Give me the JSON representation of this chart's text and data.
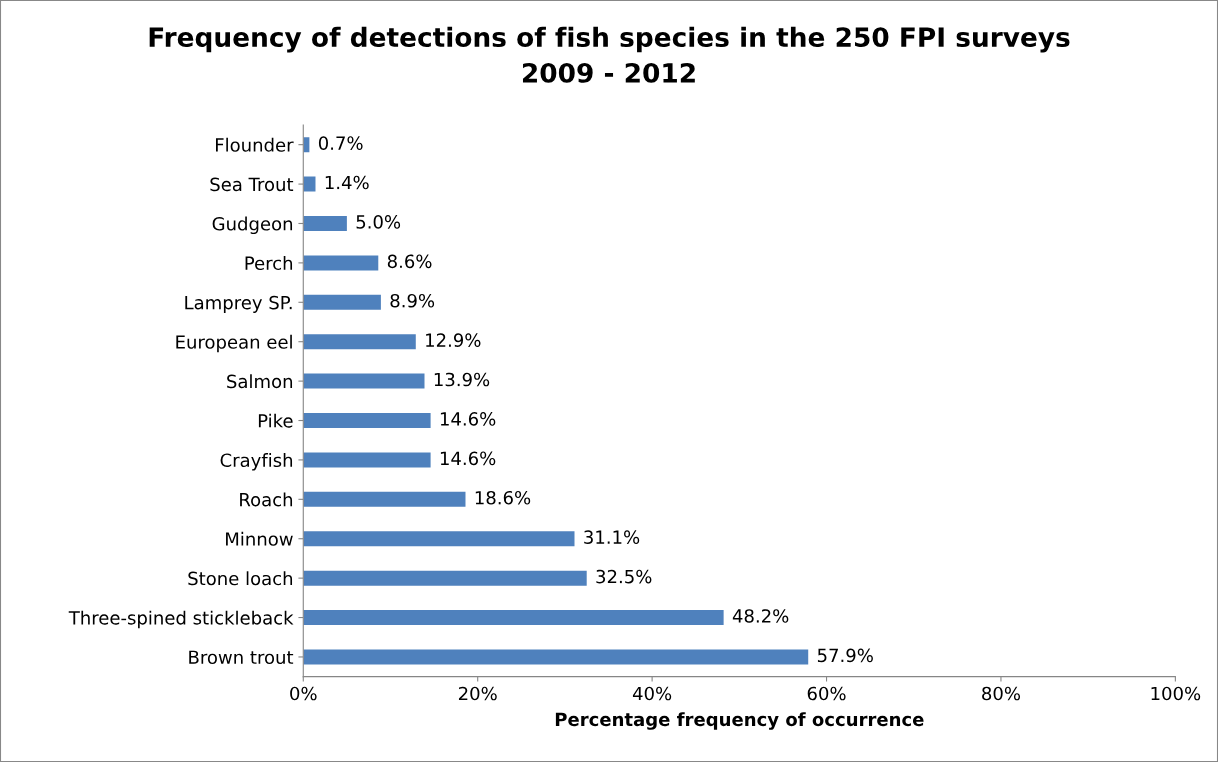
{
  "chart_data": {
    "type": "bar",
    "orientation": "horizontal",
    "title": "Frequency of detections of fish species in the 250 FPI surveys\n2009 - 2012",
    "xlabel": "Percentage frequency of occurrence",
    "categories": [
      "Flounder",
      "Sea Trout",
      "Gudgeon",
      "Perch",
      "Lamprey SP.",
      "European eel",
      "Salmon",
      "Pike",
      "Crayfish",
      "Roach",
      "Minnow",
      "Stone loach",
      "Three-spined stickleback",
      "Brown trout"
    ],
    "values": [
      0.7,
      1.4,
      5.0,
      8.6,
      8.9,
      12.9,
      13.9,
      14.6,
      14.6,
      18.6,
      31.1,
      32.5,
      48.2,
      57.9
    ],
    "value_labels": [
      "0.7%",
      "1.4%",
      "5.0%",
      "8.6%",
      "8.9%",
      "12.9%",
      "13.9%",
      "14.6%",
      "14.6%",
      "18.6%",
      "31.1%",
      "32.5%",
      "48.2%",
      "57.9%"
    ],
    "color": "#4f81bd",
    "xlim": [
      0,
      100
    ],
    "xticks": [
      {
        "value": 0,
        "label": "0%"
      },
      {
        "value": 20,
        "label": "20%"
      },
      {
        "value": 40,
        "label": "40%"
      },
      {
        "value": 60,
        "label": "60%"
      },
      {
        "value": 80,
        "label": "80%"
      },
      {
        "value": 100,
        "label": "100%"
      }
    ],
    "grid": false
  }
}
